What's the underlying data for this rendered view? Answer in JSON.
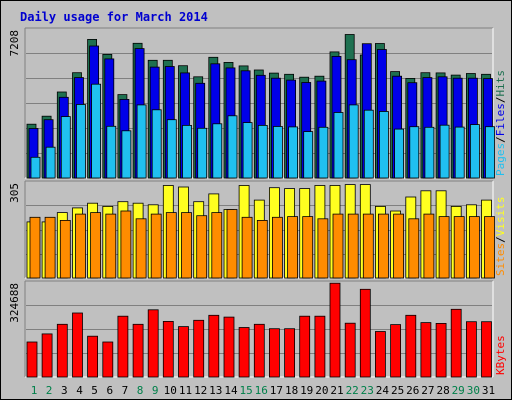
{
  "chart_data": {
    "title": "Daily usage for March 2014",
    "type": "bar",
    "categories": [
      "1",
      "2",
      "3",
      "4",
      "5",
      "6",
      "7",
      "8",
      "9",
      "10",
      "11",
      "12",
      "13",
      "14",
      "15",
      "16",
      "17",
      "18",
      "19",
      "20",
      "21",
      "22",
      "23",
      "24",
      "25",
      "26",
      "27",
      "28",
      "29",
      "30",
      "31"
    ],
    "weekend_days": [
      "1",
      "2",
      "8",
      "9",
      "15",
      "16",
      "22",
      "23",
      "29",
      "30"
    ],
    "colors": {
      "hits": "#1e7050",
      "files": "#0000e8",
      "pages": "#20c0f0",
      "visits": "#ffff20",
      "sites": "#ff8c00",
      "kbytes": "#ff0000",
      "title": "#0000d0",
      "weekday_label": "#000000",
      "weekend_label": "#00804a"
    },
    "panels": [
      {
        "id": "hits-files-pages",
        "y_max_label": "7208",
        "ylim": [
          0,
          7208
        ],
        "right_labels": [
          "Pages",
          "Files",
          "Hits"
        ],
        "series": [
          {
            "name": "Hits",
            "values": [
              2620,
              3010,
              4190,
              5130,
              6750,
              6020,
              4060,
              6560,
              5730,
              5730,
              5470,
              4930,
              5880,
              5630,
              5460,
              5260,
              5110,
              5050,
              4910,
              4960,
              6140,
              6990,
              5990,
              6550,
              5180,
              4850,
              5130,
              5120,
              5010,
              5090,
              5050
            ]
          },
          {
            "name": "Files",
            "values": [
              2410,
              2840,
              3930,
              4890,
              6430,
              5800,
              3830,
              6300,
              5400,
              5430,
              5120,
              4610,
              5560,
              5360,
              5220,
              5000,
              4860,
              4770,
              4650,
              4720,
              5920,
              5760,
              6540,
              6260,
              4960,
              4640,
              4890,
              4930,
              4860,
              4860,
              4840
            ]
          },
          {
            "name": "Pages",
            "values": [
              1010,
              1500,
              2990,
              3580,
              4570,
              2520,
              2300,
              3560,
              3320,
              2840,
              2560,
              2420,
              2640,
              3030,
              2700,
              2560,
              2510,
              2490,
              2260,
              2470,
              3190,
              3560,
              3300,
              3240,
              2380,
              2500,
              2470,
              2570,
              2480,
              2600,
              2500
            ]
          }
        ]
      },
      {
        "id": "visits-sites",
        "y_max_label": "305",
        "ylim": [
          0,
          305
        ],
        "right_labels": [
          "Sites",
          "Visits"
        ],
        "series": [
          {
            "name": "Visits",
            "values": [
              180,
              180,
              210,
              225,
              240,
              230,
              245,
              240,
              235,
              297,
              292,
              245,
              270,
              220,
              297,
              250,
              290,
              287,
              287,
              297,
              297,
              300,
              300,
              230,
              215,
              260,
              280,
              280,
              230,
              235,
              250
            ]
          },
          {
            "name": "Sites",
            "values": [
              195,
              195,
              185,
              205,
              210,
              205,
              215,
              190,
              205,
              210,
              210,
              200,
              210,
              220,
              195,
              185,
              195,
              197,
              197,
              190,
              205,
              205,
              205,
              205,
              205,
              190,
              205,
              197,
              197,
              197,
              197
            ]
          }
        ]
      },
      {
        "id": "kbytes",
        "y_max_label": "324688",
        "ylim": [
          0,
          324688
        ],
        "right_labels": [
          "KBytes"
        ],
        "series": [
          {
            "name": "KBytes",
            "values": [
              121000,
              149000,
              182000,
              221000,
              141000,
              121000,
              210000,
              182000,
              232000,
              192000,
              174000,
              196000,
              213000,
              207000,
              171000,
              182000,
              167000,
              167000,
              210000,
              210000,
              324000,
              186000,
              303000,
              157000,
              181000,
              213000,
              188000,
              185000,
              234000,
              191000,
              191000
            ]
          }
        ]
      }
    ]
  }
}
